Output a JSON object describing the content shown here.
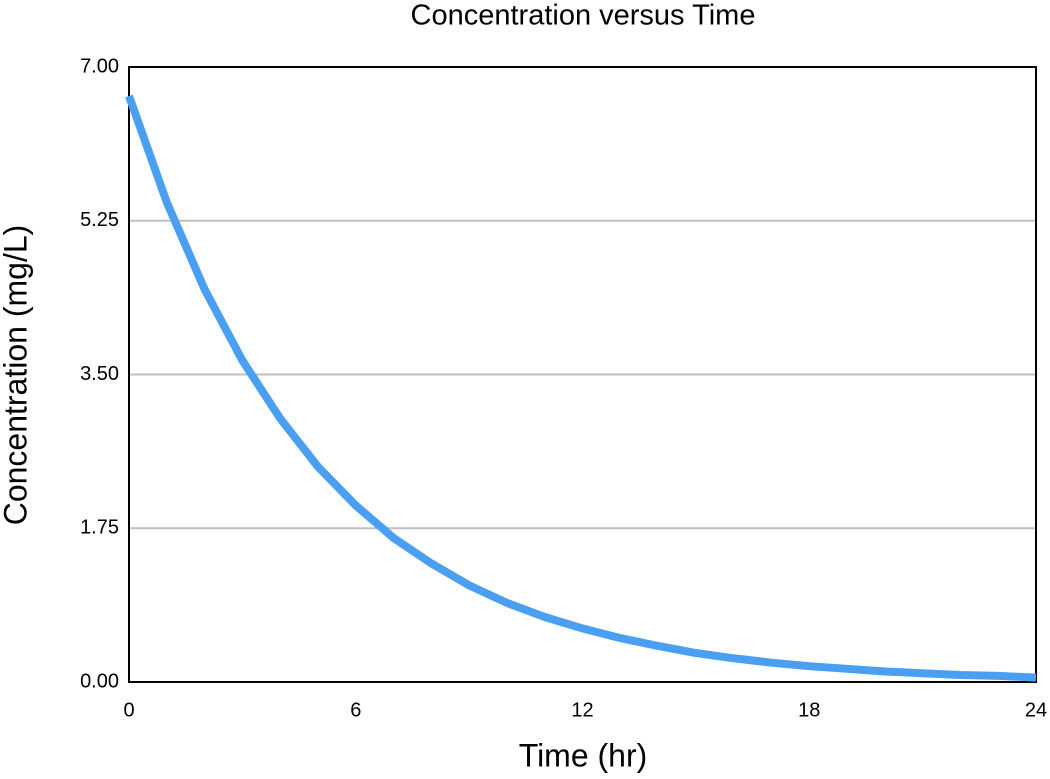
{
  "chart_data": {
    "type": "line",
    "title": "Concentration versus Time",
    "x_label": "Time (hr)",
    "y_label": "Concentration (mg/L)",
    "x": [
      0,
      1,
      2,
      3,
      4,
      5,
      6,
      7,
      8,
      9,
      10,
      11,
      12,
      13,
      14,
      15,
      16,
      17,
      18,
      19,
      20,
      21,
      22,
      23,
      24
    ],
    "values": [
      6.67,
      5.46,
      4.47,
      3.66,
      3.0,
      2.45,
      2.01,
      1.64,
      1.35,
      1.1,
      0.9,
      0.74,
      0.61,
      0.5,
      0.41,
      0.33,
      0.27,
      0.22,
      0.18,
      0.15,
      0.12,
      0.1,
      0.08,
      0.07,
      0.05
    ],
    "color": "#4a9ff0",
    "xlim": [
      0,
      24
    ],
    "xticks": [
      0,
      6,
      12,
      18,
      24
    ],
    "ylim": [
      0,
      7
    ],
    "yticks": [
      {
        "value": 0,
        "label": "0.00"
      },
      {
        "value": 1.75,
        "label": "1.75"
      },
      {
        "value": 3.5,
        "label": "3.50"
      },
      {
        "value": 5.25,
        "label": "5.25"
      },
      {
        "value": 7,
        "label": "7.00"
      }
    ],
    "grid": true
  }
}
